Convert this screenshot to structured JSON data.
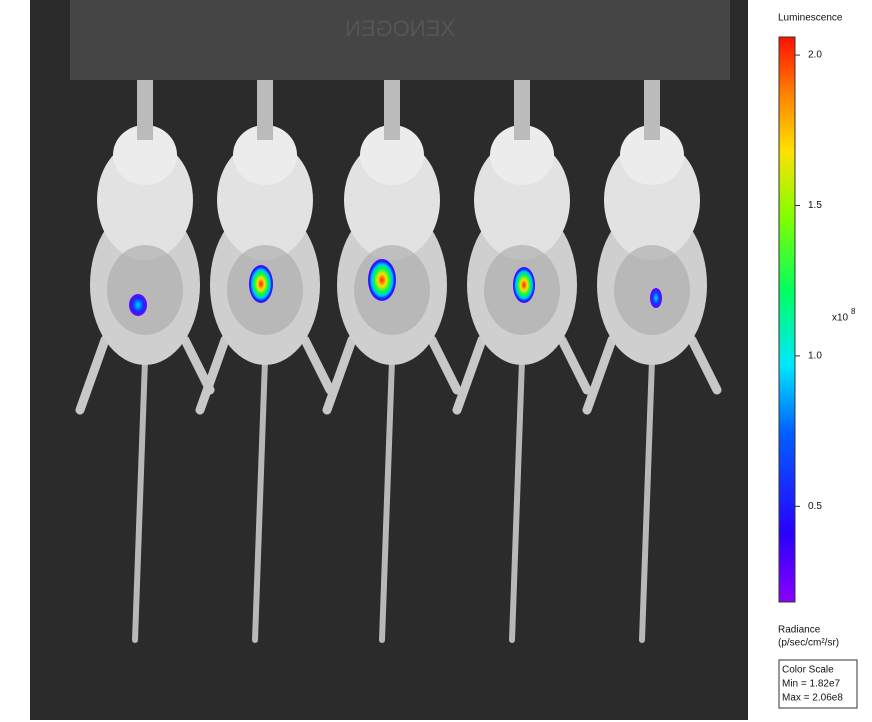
{
  "image": {
    "plate_label": "XENOGEN"
  },
  "colorbar": {
    "title": "Luminescence",
    "multiplier": "x10",
    "exponent": "8",
    "lim": [
      0.182,
      2.06
    ],
    "ticks": [
      0.5,
      {
        "value": 1,
        "label": "1.0"
      },
      1.5,
      {
        "value": 2,
        "label": "2.0"
      }
    ],
    "units_title": "Radiance",
    "units": "(p/sec/cm²/sr)"
  },
  "color_scale": {
    "title": "Color Scale",
    "min": "Min = 1.82e7",
    "max": "Max = 2.06e8"
  }
}
